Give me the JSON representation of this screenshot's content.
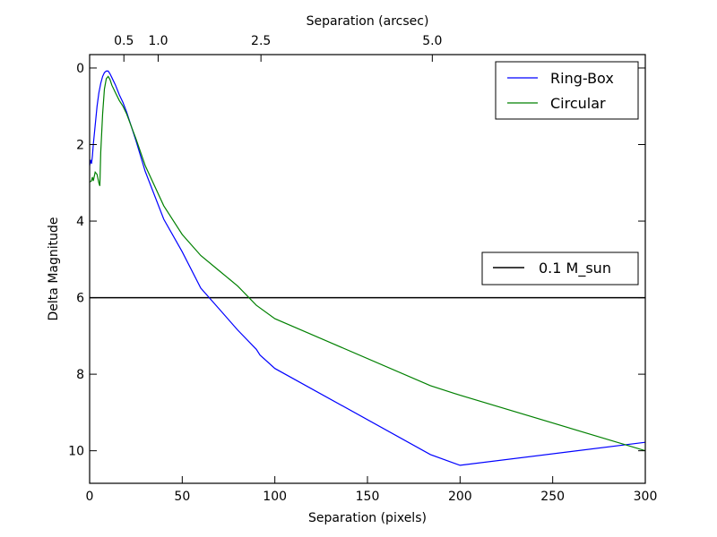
{
  "chart_data": {
    "type": "line",
    "xlabel": "Separation (pixels)",
    "ylabel": "Delta Magnitude",
    "top_xlabel": "Separation (arcsec)",
    "xlim": [
      0,
      300
    ],
    "ylim": [
      -0.35,
      10.85
    ],
    "y_inverted": true,
    "x_ticks": [
      0,
      50,
      100,
      150,
      200,
      250,
      300
    ],
    "y_ticks": [
      0,
      2,
      4,
      6,
      8,
      10
    ],
    "top_ticks": [
      {
        "label": "0.5",
        "x": 18.5
      },
      {
        "label": "1.0",
        "x": 37
      },
      {
        "label": "2.5",
        "x": 92.5
      },
      {
        "label": "5.0",
        "x": 185
      }
    ],
    "series": [
      {
        "name": "Ring-Box",
        "color": "#0000ff",
        "x": [
          0,
          0.5,
          1,
          1.5,
          2,
          3,
          4,
          5,
          6,
          7,
          8,
          9,
          10,
          11,
          12,
          14,
          16,
          18,
          20,
          25,
          30,
          40,
          50,
          60,
          70,
          80,
          90,
          92,
          100,
          184,
          200,
          300
        ],
        "y": [
          2.55,
          2.4,
          2.5,
          2.3,
          2.0,
          1.5,
          1.0,
          0.65,
          0.4,
          0.22,
          0.12,
          0.08,
          0.08,
          0.15,
          0.25,
          0.45,
          0.7,
          0.9,
          1.15,
          1.9,
          2.7,
          3.95,
          4.8,
          5.75,
          6.3,
          6.85,
          7.35,
          7.5,
          7.85,
          10.1,
          10.38,
          9.78
        ]
      },
      {
        "name": "Circular",
        "color": "#008000",
        "x": [
          0,
          1,
          1.5,
          2,
          3,
          4,
          5,
          5.5,
          6,
          7,
          8,
          9,
          10,
          11,
          12,
          14,
          16,
          18,
          20,
          25,
          30,
          40,
          50,
          60,
          70,
          80,
          90,
          100,
          184,
          200,
          300
        ],
        "y": [
          2.98,
          2.95,
          2.85,
          2.95,
          2.72,
          2.78,
          3.0,
          3.08,
          2.2,
          1.2,
          0.55,
          0.28,
          0.22,
          0.3,
          0.45,
          0.65,
          0.85,
          1.0,
          1.2,
          1.85,
          2.55,
          3.6,
          4.35,
          4.9,
          5.3,
          5.7,
          6.2,
          6.55,
          8.3,
          8.55,
          10.0
        ]
      }
    ],
    "reference_lines": [
      {
        "name": "0.1 M_sun",
        "y": 6,
        "color": "#000000"
      }
    ],
    "legends": [
      {
        "placement": "top-right",
        "entries": [
          "Ring-Box",
          "Circular"
        ]
      },
      {
        "placement": "center-right",
        "entries": [
          "0.1 M_sun"
        ]
      }
    ],
    "grid": false
  }
}
